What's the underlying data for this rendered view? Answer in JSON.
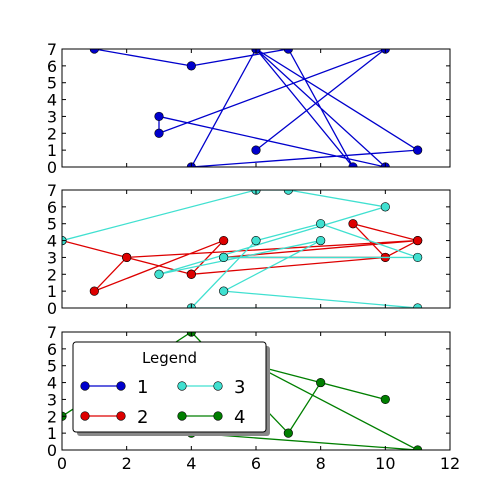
{
  "chart_data": {
    "type": "line",
    "background": "#ffffff",
    "panels": [
      {
        "xlim": [
          0,
          12
        ],
        "ylim": [
          0,
          7
        ],
        "xticks": [
          0,
          2,
          4,
          6,
          8,
          10,
          12
        ],
        "yticks": [
          0,
          1,
          2,
          3,
          4,
          5,
          6,
          7
        ],
        "show_xtick_labels": false,
        "series": [
          {
            "key": "1",
            "color": "#0000cc",
            "x": [
              1,
              4,
              7,
              9,
              6,
              4,
              11,
              6,
              10,
              3,
              3,
              10,
              6
            ],
            "y": [
              7,
              6,
              7,
              0,
              7,
              0,
              1,
              7,
              0,
              3,
              2,
              7,
              1
            ]
          }
        ]
      },
      {
        "xlim": [
          0,
          12
        ],
        "ylim": [
          0,
          7
        ],
        "xticks": [
          0,
          2,
          4,
          6,
          8,
          10,
          12
        ],
        "yticks": [
          0,
          1,
          2,
          3,
          4,
          5,
          6,
          7
        ],
        "show_xtick_labels": false,
        "series": [
          {
            "key": "2",
            "color": "#dd0000",
            "x": [
              0,
              2,
              1,
              5,
              4,
              10,
              11,
              9,
              10,
              5,
              5,
              11,
              2,
              4
            ],
            "y": [
              4,
              3,
              1,
              4,
              2,
              3,
              4,
              5,
              3,
              3,
              3,
              4,
              3,
              2
            ]
          },
          {
            "key": "3",
            "color": "#40e0d0",
            "x": [
              0,
              6,
              7,
              10,
              3,
              8,
              5,
              11,
              4,
              6,
              8,
              11,
              5
            ],
            "y": [
              4,
              7,
              7,
              6,
              2,
              4,
              1,
              0,
              0,
              4,
              5,
              3,
              3
            ]
          }
        ]
      },
      {
        "xlim": [
          0,
          12
        ],
        "ylim": [
          0,
          7
        ],
        "xticks": [
          0,
          2,
          4,
          6,
          8,
          10,
          12
        ],
        "yticks": [
          0,
          1,
          2,
          3,
          4,
          5,
          6,
          7
        ],
        "show_xtick_labels": true,
        "series": [
          {
            "key": "4",
            "color": "#007f00",
            "x": [
              0,
              4,
              7,
              8,
              10,
              6,
              11,
              4
            ],
            "y": [
              2,
              7,
              1,
              4,
              3,
              5,
              0,
              1
            ]
          }
        ]
      }
    ],
    "legend": {
      "title": "Legend",
      "placement": "upper-left of bottom panel",
      "columns": 2,
      "entries": [
        {
          "label": "1",
          "color": "#0000cc"
        },
        {
          "label": "2",
          "color": "#dd0000"
        },
        {
          "label": "3",
          "color": "#40e0d0"
        },
        {
          "label": "4",
          "color": "#007f00"
        }
      ]
    }
  }
}
